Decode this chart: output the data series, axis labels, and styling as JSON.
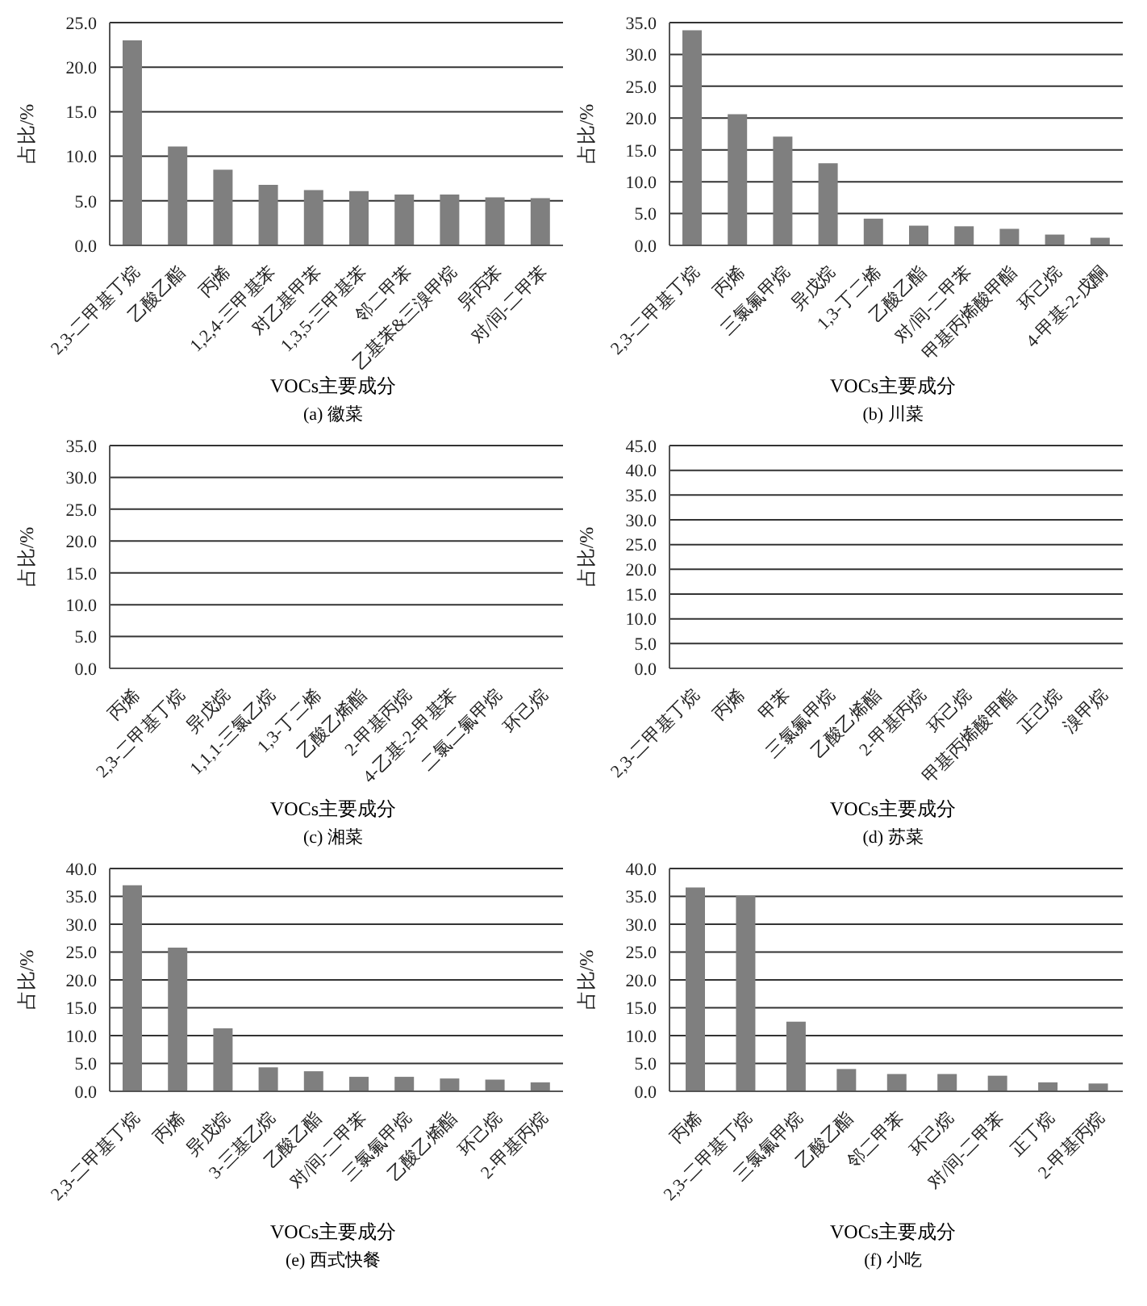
{
  "chart_data": [
    {
      "type": "bar",
      "title": "(a) 徽菜",
      "xlabel": "VOCs主要成分",
      "ylabel": "占比/%",
      "color": "#7f7f7f",
      "grid": "y",
      "categories": [
        "2,3-二甲基丁烷",
        "乙酸乙酯",
        "丙烯",
        "1,2,4-三甲基苯",
        "对乙基甲苯",
        "1,3,5-三甲基苯",
        "邻二甲苯",
        "乙基苯&三溴甲烷",
        "异丙苯",
        "对/间-二甲苯"
      ],
      "values": [
        23.0,
        11.1,
        8.5,
        6.8,
        6.2,
        6.1,
        5.7,
        5.7,
        5.4,
        5.3
      ],
      "ylim": [
        0,
        25
      ],
      "yticks": [
        {
          "value": 0,
          "label": "0.0"
        },
        {
          "value": 5,
          "label": "5.0"
        },
        {
          "value": 10,
          "label": "10.0"
        },
        {
          "value": 15,
          "label": "15.0"
        },
        {
          "value": 20,
          "label": "20.0"
        },
        {
          "value": 25,
          "label": "25.0"
        }
      ]
    },
    {
      "type": "bar",
      "title": "(b) 川菜",
      "xlabel": "VOCs主要成分",
      "ylabel": "占比/%",
      "color": "#7f7f7f",
      "grid": "y",
      "categories": [
        "2,3-二甲基丁烷",
        "丙烯",
        "三氯氟甲烷",
        "异戊烷",
        "1,3-丁二烯",
        "乙酸乙酯",
        "对/间-二甲苯",
        "甲基丙烯酸甲酯",
        "环己烷",
        "4-甲基-2-戊酮"
      ],
      "values": [
        33.8,
        20.6,
        17.1,
        12.9,
        4.2,
        3.1,
        3.0,
        2.6,
        1.7,
        1.2
      ],
      "ylim": [
        0,
        35
      ],
      "yticks": [
        {
          "value": 0,
          "label": "0.0"
        },
        {
          "value": 5,
          "label": "5.0"
        },
        {
          "value": 10,
          "label": "10.0"
        },
        {
          "value": 15,
          "label": "15.0"
        },
        {
          "value": 20,
          "label": "20.0"
        },
        {
          "value": 25,
          "label": "25.0"
        },
        {
          "value": 30,
          "label": "30.0"
        },
        {
          "value": 35,
          "label": "35.0"
        }
      ]
    },
    {
      "type": "bar",
      "title": "(c) 湘菜",
      "xlabel": "VOCs主要成分",
      "ylabel": "占比/%",
      "color": "#7f7f7f",
      "grid": "y",
      "categories": [
        "丙烯",
        "2,3-二甲基丁烷",
        "异戊烷",
        "1,1,1-三氯乙烷",
        "1,3-丁二烯",
        "乙酸乙烯酯",
        "2-甲基丙烷",
        "4-乙基-2-甲基苯",
        "二氯二氟甲烷",
        "环己烷"
      ],
      "values": [
        null,
        null,
        null,
        null,
        null,
        null,
        null,
        null,
        null,
        null
      ],
      "ylim": [
        0,
        35
      ],
      "yticks": [
        {
          "value": 0,
          "label": "0.0"
        },
        {
          "value": 5,
          "label": "5.0"
        },
        {
          "value": 10,
          "label": "10.0"
        },
        {
          "value": 15,
          "label": "15.0"
        },
        {
          "value": 20,
          "label": "20.0"
        },
        {
          "value": 25,
          "label": "25.0"
        },
        {
          "value": 30,
          "label": "30.0"
        },
        {
          "value": 35,
          "label": "35.0"
        }
      ]
    },
    {
      "type": "bar",
      "title": "(d) 苏菜",
      "xlabel": "VOCs主要成分",
      "ylabel": "占比/%",
      "color": "#7f7f7f",
      "grid": "y",
      "categories": [
        "2,3-二甲基丁烷",
        "丙烯",
        "甲苯",
        "三氯氟甲烷",
        "乙酸乙烯酯",
        "2-甲基丙烷",
        "环己烷",
        "甲基丙烯酸甲酯",
        "正己烷",
        "溴甲烷"
      ],
      "values": [
        null,
        null,
        null,
        null,
        null,
        null,
        null,
        null,
        null,
        null
      ],
      "ylim": [
        0,
        45
      ],
      "yticks": [
        {
          "value": 0,
          "label": "0.0"
        },
        {
          "value": 5,
          "label": "5.0"
        },
        {
          "value": 10,
          "label": "10.0"
        },
        {
          "value": 15,
          "label": "15.0"
        },
        {
          "value": 20,
          "label": "20.0"
        },
        {
          "value": 25,
          "label": "25.0"
        },
        {
          "value": 30,
          "label": "30.0"
        },
        {
          "value": 35,
          "label": "35.0"
        },
        {
          "value": 40,
          "label": "40.0"
        },
        {
          "value": 45,
          "label": "45.0"
        }
      ]
    },
    {
      "type": "bar",
      "title": "(e) 西式快餐",
      "xlabel": "VOCs主要成分",
      "ylabel": "占比/%",
      "color": "#7f7f7f",
      "grid": "y",
      "categories": [
        "2,3-二甲基丁烷",
        "丙烯",
        "异戊烷",
        "3-三基乙烷",
        "乙酸乙酯",
        "对/间-二甲苯",
        "三氯氟甲烷",
        "乙酸乙烯酯",
        "环己烷",
        "2-甲基丙烷"
      ],
      "values": [
        37.0,
        25.8,
        11.3,
        4.3,
        3.6,
        2.6,
        2.6,
        2.3,
        2.1,
        1.6
      ],
      "ylim": [
        0,
        40
      ],
      "yticks": [
        {
          "value": 0,
          "label": "0.0"
        },
        {
          "value": 5,
          "label": "5.0"
        },
        {
          "value": 10,
          "label": "10.0"
        },
        {
          "value": 15,
          "label": "15.0"
        },
        {
          "value": 20,
          "label": "20.0"
        },
        {
          "value": 25,
          "label": "25.0"
        },
        {
          "value": 30,
          "label": "30.0"
        },
        {
          "value": 35,
          "label": "35.0"
        },
        {
          "value": 40,
          "label": "40.0"
        }
      ]
    },
    {
      "type": "bar",
      "title": "(f) 小吃",
      "xlabel": "VOCs主要成分",
      "ylabel": "占比/%",
      "color": "#7f7f7f",
      "grid": "y",
      "categories": [
        "丙烯",
        "2,3-二甲基丁烷",
        "三氯氟甲烷",
        "乙酸乙酯",
        "邻二甲苯",
        "环己烷",
        "对/间-二甲苯",
        "正丁烷",
        "2-甲基丙烷"
      ],
      "values": [
        36.6,
        35.1,
        12.5,
        4.0,
        3.1,
        3.1,
        2.8,
        1.6,
        1.4
      ],
      "ylim": [
        0,
        40
      ],
      "yticks": [
        {
          "value": 0,
          "label": "0.0"
        },
        {
          "value": 5,
          "label": "5.0"
        },
        {
          "value": 10,
          "label": "10.0"
        },
        {
          "value": 15,
          "label": "15.0"
        },
        {
          "value": 20,
          "label": "20.0"
        },
        {
          "value": 25,
          "label": "25.0"
        },
        {
          "value": 30,
          "label": "30.0"
        },
        {
          "value": 35,
          "label": "35.0"
        },
        {
          "value": 40,
          "label": "40.0"
        }
      ]
    }
  ]
}
